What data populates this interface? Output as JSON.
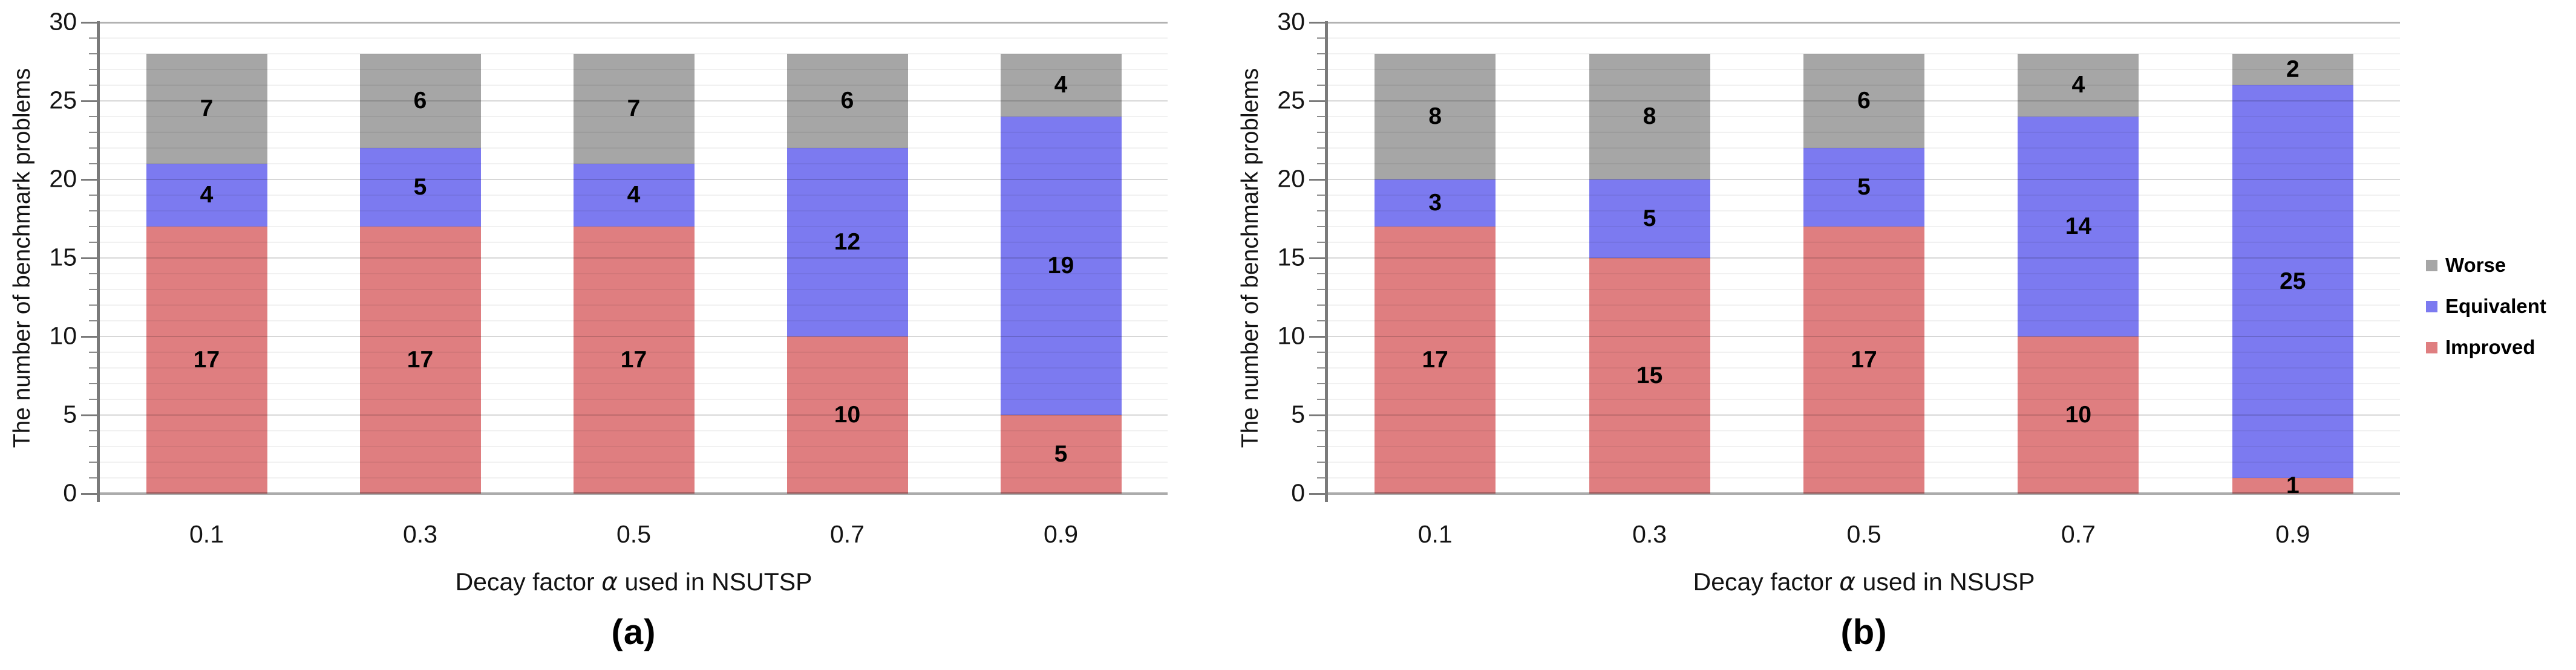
{
  "figure": {
    "background": "#ffffff",
    "legend": {
      "position": "right",
      "entries": [
        {
          "label": "Worse",
          "color": "#a6a6a6"
        },
        {
          "label": "Equivalent",
          "color": "#7c7af0"
        },
        {
          "label": "Improved",
          "color": "#df7e80"
        }
      ]
    }
  },
  "chart_data": [
    {
      "type": "bar",
      "stacked": true,
      "categories": [
        "0.1",
        "0.3",
        "0.5",
        "0.7",
        "0.9"
      ],
      "series": [
        {
          "name": "Improved",
          "color": "#df7e80",
          "values": [
            17,
            17,
            17,
            10,
            5
          ]
        },
        {
          "name": "Equivalent",
          "color": "#7c7af0",
          "values": [
            4,
            5,
            4,
            12,
            19
          ]
        },
        {
          "name": "Worse",
          "color": "#a6a6a6",
          "values": [
            7,
            6,
            7,
            6,
            4
          ]
        }
      ],
      "totals": [
        28,
        28,
        28,
        28,
        28
      ],
      "xlabel": "Decay factor α used in NSUTSP",
      "xlabel_parts": {
        "prefix": "Decay factor ",
        "alpha": "α",
        "suffix": " used in NSUTSP"
      },
      "ylabel": "The number of benchmark problems",
      "ylim": [
        0,
        30
      ],
      "yticks": [
        0,
        5,
        10,
        15,
        20,
        25,
        30
      ],
      "ytick_step_major": 5,
      "ytick_step_minor": 1,
      "grid": true,
      "data_labels": true,
      "legend_position": "right",
      "caption": "(a)"
    },
    {
      "type": "bar",
      "stacked": true,
      "categories": [
        "0.1",
        "0.3",
        "0.5",
        "0.7",
        "0.9"
      ],
      "series": [
        {
          "name": "Improved",
          "color": "#df7e80",
          "values": [
            17,
            15,
            17,
            10,
            1
          ]
        },
        {
          "name": "Equivalent",
          "color": "#7c7af0",
          "values": [
            3,
            5,
            5,
            14,
            25
          ]
        },
        {
          "name": "Worse",
          "color": "#a6a6a6",
          "values": [
            8,
            8,
            6,
            4,
            2
          ]
        }
      ],
      "totals": [
        28,
        28,
        28,
        28,
        28
      ],
      "xlabel": "Decay factor α used in NSUSP",
      "xlabel_parts": {
        "prefix": "Decay factor ",
        "alpha": "α",
        "suffix": " used in NSUSP"
      },
      "ylabel": "The number of benchmark problems",
      "ylim": [
        0,
        30
      ],
      "yticks": [
        0,
        5,
        10,
        15,
        20,
        25,
        30
      ],
      "ytick_step_major": 5,
      "ytick_step_minor": 1,
      "grid": true,
      "data_labels": true,
      "legend_position": "right",
      "caption": "(b)"
    }
  ]
}
